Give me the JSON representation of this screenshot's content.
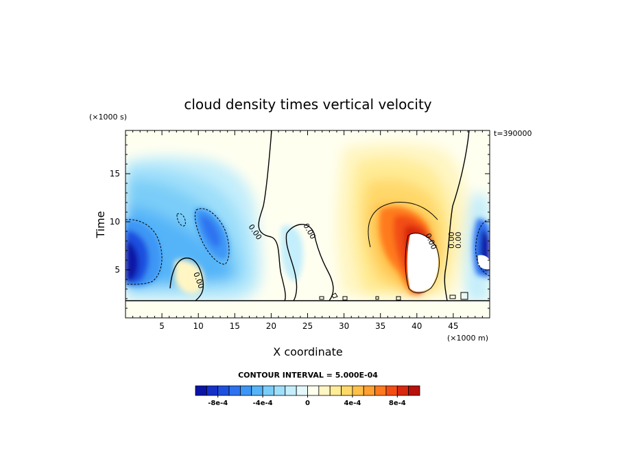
{
  "chart_data": {
    "type": "heatmap",
    "title": "cloud density times vertical velocity",
    "xlabel": "X coordinate",
    "ylabel": "Time",
    "x_units": "(×1000 m)",
    "y_units": "(×1000 s)",
    "time_label": "t=390000",
    "xlim": [
      0,
      50
    ],
    "ylim": [
      0,
      19.5
    ],
    "x_ticks": [
      5,
      10,
      15,
      20,
      25,
      30,
      35,
      40,
      45
    ],
    "y_ticks": [
      5,
      10,
      15
    ],
    "contour_interval_text": "CONTOUR INTERVAL = 5.000E-04",
    "contour_labels": [
      "0.00",
      "0.00",
      "0.00",
      "0.00",
      "0.00",
      "0.00"
    ],
    "colorbar": {
      "levels": [
        -0.001,
        -0.0009,
        -0.0008,
        -0.0007,
        -0.0006,
        -0.0005,
        -0.0004,
        -0.0003,
        -0.0002,
        -0.0001,
        0,
        0.0001,
        0.0002,
        0.0003,
        0.0004,
        0.0005,
        0.0006,
        0.0007,
        0.0008,
        0.0009,
        0.001
      ],
      "colors": [
        "#0a14a6",
        "#1431c8",
        "#1e50e0",
        "#2d73f0",
        "#3c96f5",
        "#55b4f8",
        "#7acdf8",
        "#9fdffa",
        "#c4eefb",
        "#e4f7fb",
        "#fffff0",
        "#fff6c4",
        "#ffec96",
        "#ffd86a",
        "#ffc04a",
        "#ffa030",
        "#ff7a1e",
        "#f24e14",
        "#d8280e",
        "#b8100a"
      ],
      "tick_labels": [
        "-8e-4",
        "-4e-4",
        "0",
        "4e-4",
        "8e-4"
      ],
      "tick_values": [
        -0.0008,
        -0.0004,
        0,
        0.0004,
        0.0008
      ]
    },
    "features": [
      {
        "x": 2.0,
        "y": 7.5,
        "value": -0.00085
      },
      {
        "x": 4.0,
        "y": 11.0,
        "value": -0.0004
      },
      {
        "x": 8.0,
        "y": 15.0,
        "value": -0.00025
      },
      {
        "x": 10.5,
        "y": 9.5,
        "value": -0.0005
      },
      {
        "x": 12.5,
        "y": 8.0,
        "value": -0.0004
      },
      {
        "x": 16.0,
        "y": 6.0,
        "value": -0.0003
      },
      {
        "x": 7.5,
        "y": 4.5,
        "value": 0.00015
      },
      {
        "x": 24.0,
        "y": 5.5,
        "value": -0.00015
      },
      {
        "x": 35.0,
        "y": 14.0,
        "value": 0.00025
      },
      {
        "x": 38.0,
        "y": 9.0,
        "value": 0.0007
      },
      {
        "x": 40.5,
        "y": 7.0,
        "value": 0.00095
      },
      {
        "x": 49.5,
        "y": 7.0,
        "value": -0.0007
      }
    ]
  }
}
